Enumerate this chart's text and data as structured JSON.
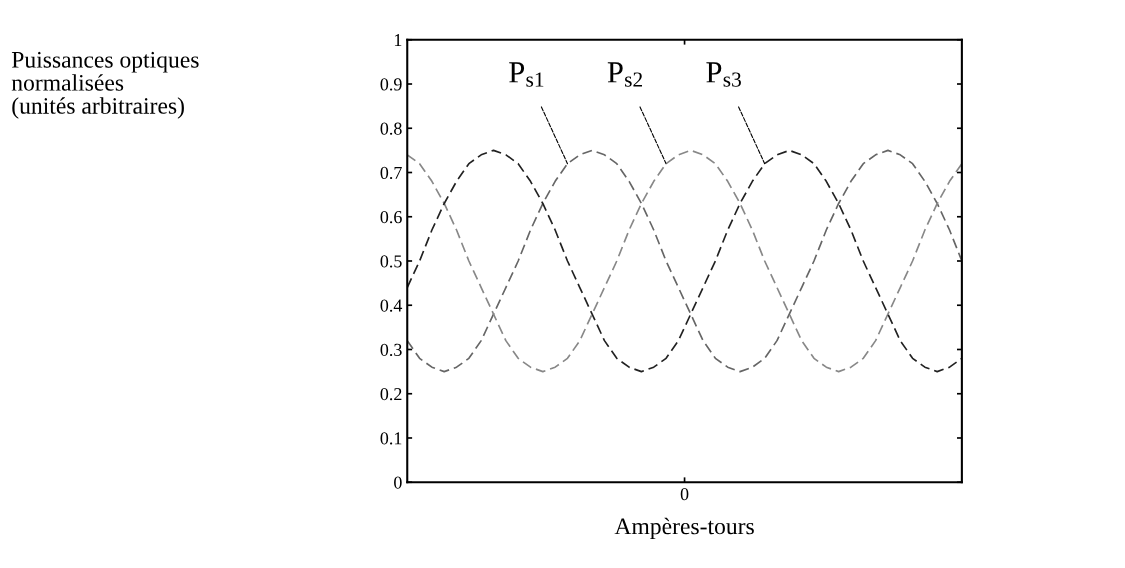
{
  "chart_data": {
    "type": "line",
    "xlabel": "Ampères-tours",
    "categories": [
      null,
      null,
      null,
      null,
      null,
      null,
      null,
      null,
      null,
      null,
      null,
      null,
      null,
      null,
      null,
      null,
      null,
      null,
      null,
      null,
      null,
      null,
      null,
      null,
      null,
      null,
      null,
      null,
      null,
      null,
      null,
      null,
      null,
      null,
      null,
      null,
      null,
      null,
      null,
      null,
      null,
      null,
      null,
      null,
      null,
      null
    ],
    "series": [
      {
        "name": "P$_{s1}$",
        "color": "#666666",
        "values": [
          0.32,
          0.28,
          0.26,
          0.25,
          0.26,
          0.28,
          0.32,
          0.38,
          0.44,
          0.5,
          0.57,
          0.63,
          0.68,
          0.72,
          0.74,
          0.75,
          0.74,
          0.72,
          0.68,
          0.63,
          0.57,
          0.5,
          0.44,
          0.38,
          0.32,
          0.28,
          0.26,
          0.25,
          0.26,
          0.28,
          0.32,
          0.38,
          0.44,
          0.5,
          0.57,
          0.63,
          0.68,
          0.72,
          0.74,
          0.75,
          0.74,
          0.72,
          0.68,
          0.63,
          0.57,
          0.5
        ]
      },
      {
        "name": "P$_{s2}$",
        "color": "#888888",
        "values": [
          0.74,
          0.72,
          0.68,
          0.63,
          0.57,
          0.5,
          0.44,
          0.38,
          0.32,
          0.28,
          0.26,
          0.25,
          0.26,
          0.28,
          0.32,
          0.38,
          0.44,
          0.5,
          0.57,
          0.63,
          0.68,
          0.72,
          0.74,
          0.75,
          0.74,
          0.72,
          0.68,
          0.63,
          0.57,
          0.5,
          0.44,
          0.38,
          0.32,
          0.28,
          0.26,
          0.25,
          0.26,
          0.28,
          0.32,
          0.38,
          0.44,
          0.5,
          0.57,
          0.63,
          0.68,
          0.72
        ]
      },
      {
        "name": "P$_{s3}$",
        "color": "#222222",
        "values": [
          0.44,
          0.5,
          0.57,
          0.63,
          0.68,
          0.72,
          0.74,
          0.75,
          0.74,
          0.72,
          0.68,
          0.63,
          0.57,
          0.5,
          0.44,
          0.38,
          0.32,
          0.28,
          0.26,
          0.25,
          0.26,
          0.28,
          0.32,
          0.38,
          0.44,
          0.5,
          0.57,
          0.63,
          0.68,
          0.72,
          0.74,
          0.75,
          0.74,
          0.72,
          0.68,
          0.63,
          0.57,
          0.5,
          0.44,
          0.38,
          0.32,
          0.28,
          0.26,
          0.25,
          0.26,
          0.28
        ]
      }
    ],
    "annotations": [
      "0",
      "Puissances optiques\nnormalisées\n(unités arbitraires)"
    ],
    "ylim": [
      0,
      1
    ],
    "yticks": [
      0,
      0.1,
      0.2,
      0.3,
      0.4,
      0.5,
      0.6,
      0.7,
      0.8,
      0.9,
      1
    ],
    "grid": false,
    "legend": false,
    "marker": "none",
    "line_style": "dashed"
  }
}
